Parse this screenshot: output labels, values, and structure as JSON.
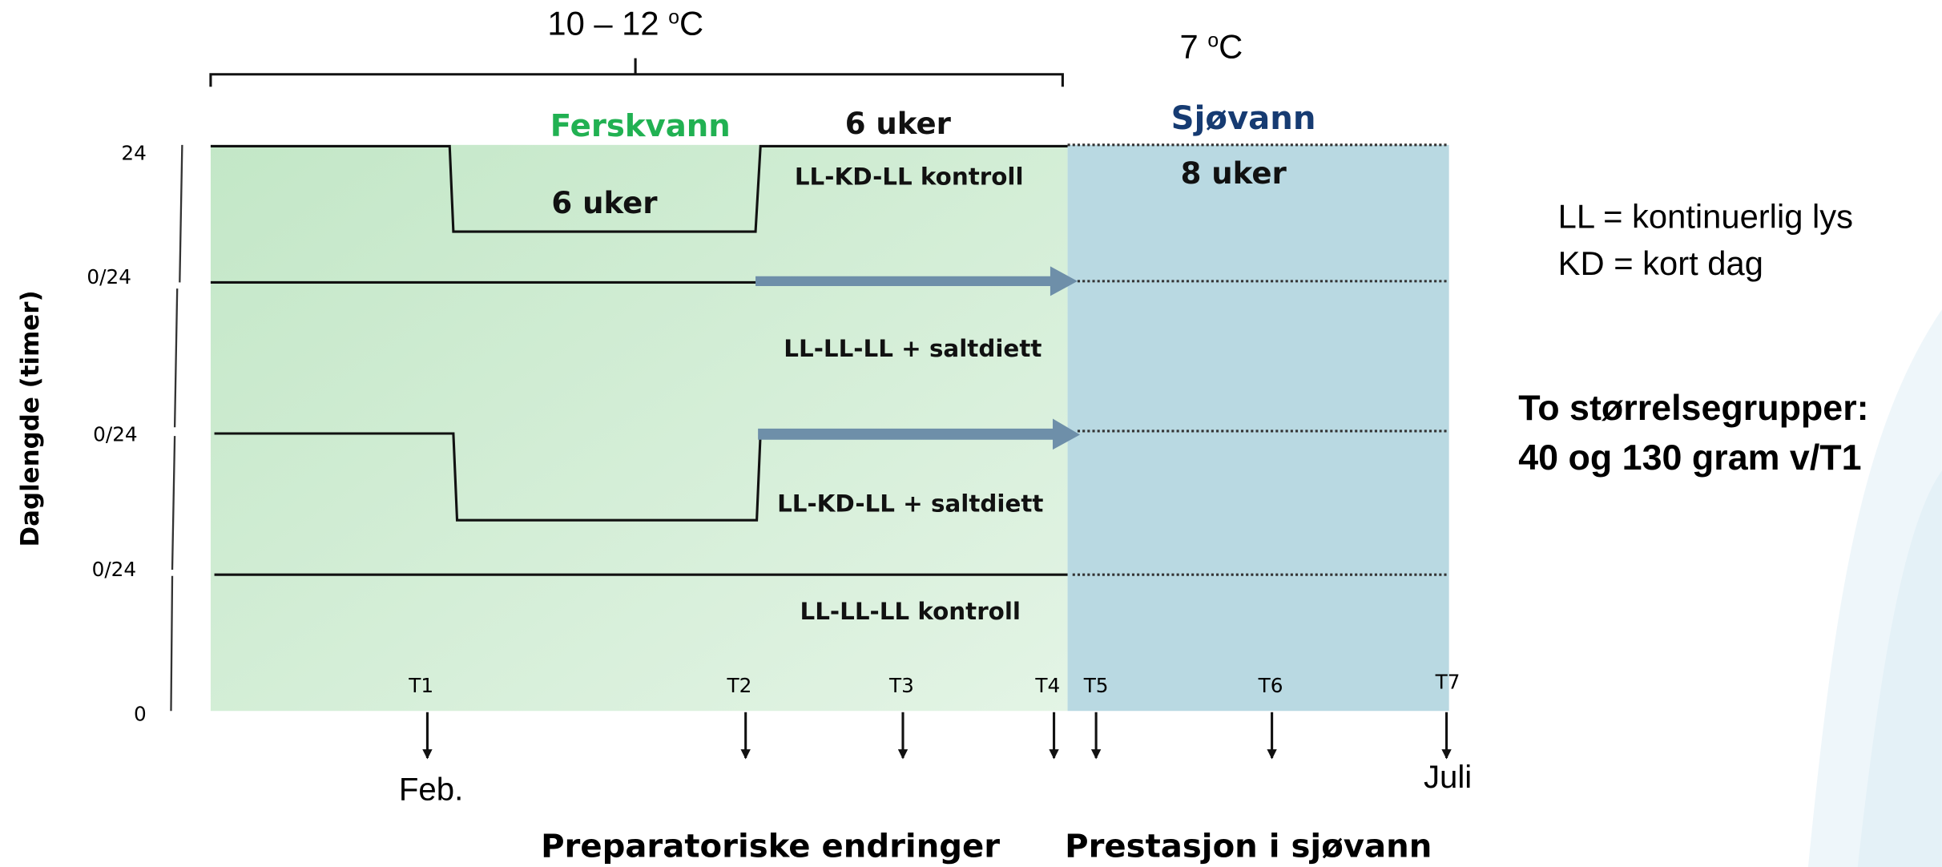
{
  "temperature": {
    "freshwater": {
      "text": "10 – 12 ",
      "sup": "o",
      "unit": "C"
    },
    "seawater": {
      "text": "7 ",
      "sup": "o",
      "unit": "C"
    }
  },
  "phases": {
    "freshwater": {
      "label": "Ferskvann",
      "duration": "6 uker"
    },
    "seawater": {
      "label": "Sjøvann",
      "duration": "8 uker"
    }
  },
  "short_day_duration": "6 uker",
  "groups": [
    "LL-KD-LL kontroll",
    "LL-LL-LL + saltdiett",
    "LL-KD-LL + saltdiett",
    "LL-LL-LL kontroll"
  ],
  "y_axis": {
    "title": "Daglengde (timer)",
    "labels": [
      "24",
      "0/24",
      "0/24",
      "0/24",
      "0"
    ]
  },
  "sampling_points": [
    "T1",
    "T2",
    "T3",
    "T4",
    "T5",
    "T6",
    "T7"
  ],
  "months": {
    "start": "Feb.",
    "end": "Juli"
  },
  "stages": [
    "Preparatoriske endringer",
    "Prestasjon i sjøvann"
  ],
  "legend": [
    "LL = kontinuerlig lys",
    "KD = kort dag"
  ],
  "note": [
    "To størrelsegrupper:",
    "40 og 130 gram v/T1"
  ]
}
